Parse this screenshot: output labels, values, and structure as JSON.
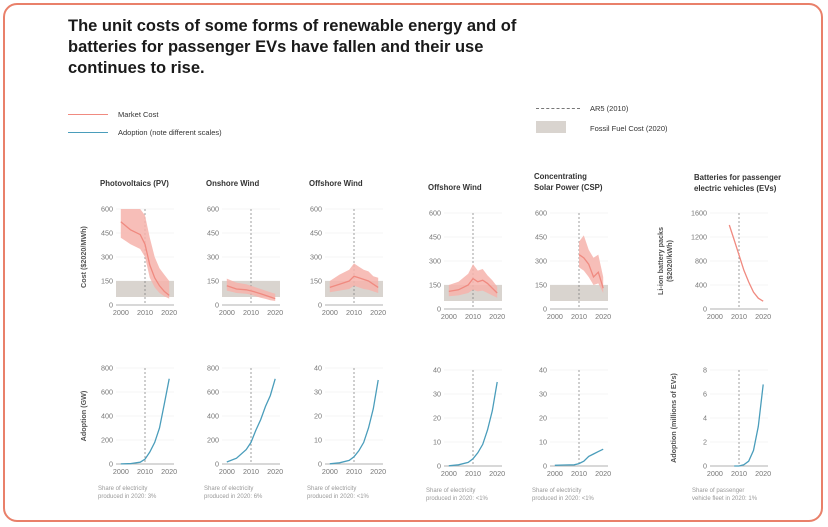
{
  "title": "The unit costs of some forms of renewable energy and of batteries for passenger EVs have fallen and their use continues to rise.",
  "legend": {
    "market_cost": "Market Cost",
    "adoption": "Adoption (note different scales)",
    "ar5": "AR5 (2010)",
    "fossil": "Fossil Fuel Cost (2020)"
  },
  "colors": {
    "cost": "#f08a80",
    "cost_band": "#f6b3ab",
    "adoption": "#4a9dbb",
    "fossil": "#d9d4cf",
    "frame": "#e9806a"
  },
  "chart_data": [
    {
      "type": "line",
      "title": "Photovoltaics (PV)",
      "ylabel": "Cost ($2020/MWh)",
      "x": [
        2000,
        2004,
        2008,
        2010,
        2012,
        2014,
        2016,
        2018,
        2020
      ],
      "series": [
        {
          "name": "Market Cost",
          "values": [
            520,
            470,
            440,
            380,
            250,
            170,
            120,
            85,
            60
          ]
        },
        {
          "name": "band_high",
          "values": [
            600,
            600,
            600,
            560,
            420,
            300,
            230,
            190,
            150
          ]
        },
        {
          "name": "band_low",
          "values": [
            420,
            380,
            350,
            300,
            170,
            110,
            75,
            55,
            40
          ]
        }
      ],
      "fossil": [
        50,
        150
      ],
      "ylim": [
        0,
        600
      ],
      "yticks": [
        0,
        150,
        300,
        450,
        600
      ],
      "xticks": [
        2000,
        2010,
        2020
      ]
    },
    {
      "type": "line",
      "title": "Onshore Wind",
      "x": [
        2000,
        2004,
        2008,
        2010,
        2012,
        2014,
        2016,
        2018,
        2020
      ],
      "series": [
        {
          "name": "Market Cost",
          "values": [
            120,
            100,
            95,
            88,
            80,
            70,
            60,
            50,
            40
          ]
        },
        {
          "name": "band_high",
          "values": [
            165,
            140,
            130,
            120,
            110,
            100,
            90,
            80,
            70
          ]
        },
        {
          "name": "band_low",
          "values": [
            90,
            75,
            70,
            65,
            55,
            45,
            38,
            30,
            25
          ]
        }
      ],
      "fossil": [
        50,
        150
      ],
      "ylim": [
        0,
        600
      ],
      "yticks": [
        0,
        150,
        300,
        450,
        600
      ],
      "xticks": [
        2000,
        2010,
        2020
      ]
    },
    {
      "type": "line",
      "title": "Offshore Wind",
      "x": [
        2000,
        2004,
        2008,
        2010,
        2012,
        2014,
        2016,
        2018,
        2020
      ],
      "series": [
        {
          "name": "Market Cost",
          "values": [
            110,
            130,
            150,
            180,
            170,
            160,
            150,
            130,
            110
          ]
        },
        {
          "name": "band_high",
          "values": [
            150,
            190,
            220,
            260,
            240,
            220,
            210,
            180,
            170
          ]
        },
        {
          "name": "band_low",
          "values": [
            80,
            90,
            100,
            120,
            110,
            100,
            95,
            85,
            75
          ]
        }
      ],
      "fossil": [
        50,
        150
      ],
      "ylim": [
        0,
        600
      ],
      "yticks": [
        0,
        150,
        300,
        450,
        600
      ],
      "xticks": [
        2000,
        2010,
        2020
      ]
    },
    {
      "type": "line",
      "title": "Offshore Wind",
      "x": [
        2000,
        2004,
        2008,
        2010,
        2012,
        2014,
        2016,
        2018,
        2020
      ],
      "series": [
        {
          "name": "Market Cost",
          "values": [
            110,
            120,
            150,
            190,
            170,
            180,
            160,
            130,
            100
          ]
        },
        {
          "name": "band_high",
          "values": [
            150,
            170,
            220,
            280,
            240,
            250,
            210,
            180,
            140
          ]
        },
        {
          "name": "band_low",
          "values": [
            80,
            85,
            100,
            120,
            110,
            115,
            100,
            85,
            70
          ]
        }
      ],
      "fossil": [
        50,
        150
      ],
      "ylim": [
        0,
        600
      ],
      "yticks": [
        0,
        150,
        300,
        450,
        600
      ],
      "xticks": [
        2000,
        2010,
        2020
      ]
    },
    {
      "type": "line",
      "title": "Concentrating Solar Power (CSP)",
      "x": [
        2010,
        2012,
        2014,
        2016,
        2018,
        2020
      ],
      "series": [
        {
          "name": "Market Cost",
          "values": [
            340,
            320,
            280,
            200,
            230,
            130
          ]
        },
        {
          "name": "band_high",
          "values": [
            420,
            460,
            370,
            320,
            340,
            200
          ]
        },
        {
          "name": "band_low",
          "values": [
            260,
            240,
            200,
            150,
            160,
            100
          ]
        }
      ],
      "fossil": [
        50,
        150
      ],
      "ylim": [
        0,
        600
      ],
      "yticks": [
        0,
        150,
        300,
        450,
        600
      ],
      "xticks": [
        2000,
        2010,
        2020
      ]
    },
    {
      "type": "line",
      "title": "Batteries for passenger electric vehicles (EVs)",
      "ylabel": "Li-ion battery packs ($2020/kWh)",
      "x": [
        2006,
        2008,
        2010,
        2012,
        2014,
        2016,
        2018,
        2020
      ],
      "series": [
        {
          "name": "Market Cost",
          "values": [
            1400,
            1150,
            900,
            650,
            450,
            280,
            180,
            130
          ]
        }
      ],
      "ylim": [
        0,
        1600
      ],
      "yticks": [
        0,
        400,
        800,
        1200,
        1600
      ],
      "xticks": [
        2000,
        2010,
        2020
      ]
    },
    {
      "type": "line",
      "ylabel": "Adoption (GW)",
      "note": "Share of electricity produced in 2020: 3%",
      "x": [
        2000,
        2004,
        2008,
        2010,
        2012,
        2014,
        2016,
        2018,
        2020
      ],
      "series": [
        {
          "name": "Adoption",
          "values": [
            1,
            3,
            15,
            40,
            100,
            180,
            300,
            500,
            710
          ]
        }
      ],
      "ylim": [
        0,
        800
      ],
      "yticks": [
        0,
        200,
        400,
        600,
        800
      ],
      "xticks": [
        2000,
        2010,
        2020
      ]
    },
    {
      "type": "line",
      "note": "Share of electricity produced in 2020: 6%",
      "x": [
        2000,
        2004,
        2008,
        2010,
        2012,
        2014,
        2016,
        2018,
        2020
      ],
      "series": [
        {
          "name": "Adoption",
          "values": [
            17,
            48,
            120,
            180,
            280,
            370,
            480,
            570,
            710
          ]
        }
      ],
      "ylim": [
        0,
        800
      ],
      "yticks": [
        0,
        200,
        400,
        600,
        800
      ],
      "xticks": [
        2000,
        2010,
        2020
      ]
    },
    {
      "type": "line",
      "note": "Share of electricity produced in 2020: <1%",
      "x": [
        2000,
        2004,
        2008,
        2010,
        2012,
        2014,
        2016,
        2018,
        2020
      ],
      "series": [
        {
          "name": "Adoption",
          "values": [
            0.1,
            0.5,
            1.5,
            3,
            5.5,
            9,
            15,
            23,
            35
          ]
        }
      ],
      "ylim": [
        0,
        40
      ],
      "yticks": [
        0,
        10,
        20,
        30,
        40
      ],
      "xticks": [
        2000,
        2010,
        2020
      ]
    },
    {
      "type": "line",
      "note": "Share of electricity produced in 2020: <1%",
      "x": [
        2000,
        2004,
        2008,
        2010,
        2012,
        2014,
        2016,
        2018,
        2020
      ],
      "series": [
        {
          "name": "Adoption",
          "values": [
            0.1,
            0.5,
            1.5,
            3,
            5.5,
            9,
            15,
            23,
            35
          ]
        }
      ],
      "ylim": [
        0,
        40
      ],
      "yticks": [
        0,
        10,
        20,
        30,
        40
      ],
      "xticks": [
        2000,
        2010,
        2020
      ]
    },
    {
      "type": "line",
      "note": "Share of electricity produced in 2020: <1%",
      "x": [
        2000,
        2004,
        2008,
        2010,
        2012,
        2014,
        2016,
        2018,
        2020
      ],
      "series": [
        {
          "name": "Adoption",
          "values": [
            0.3,
            0.4,
            0.5,
            1,
            2,
            4,
            5,
            6,
            7
          ]
        }
      ],
      "ylim": [
        0,
        40
      ],
      "yticks": [
        0,
        10,
        20,
        30,
        40
      ],
      "xticks": [
        2000,
        2010,
        2020
      ]
    },
    {
      "type": "line",
      "ylabel": "Adoption (millions of EVs)",
      "note": "Share of passenger vehicle fleet in 2020: 1%",
      "x": [
        2008,
        2010,
        2012,
        2014,
        2016,
        2018,
        2020
      ],
      "series": [
        {
          "name": "Adoption",
          "values": [
            0,
            0,
            0.1,
            0.4,
            1.3,
            3.3,
            6.8
          ]
        }
      ],
      "ylim": [
        0,
        8
      ],
      "yticks": [
        0,
        2,
        4,
        6,
        8
      ],
      "xticks": [
        2000,
        2010,
        2020
      ]
    }
  ]
}
